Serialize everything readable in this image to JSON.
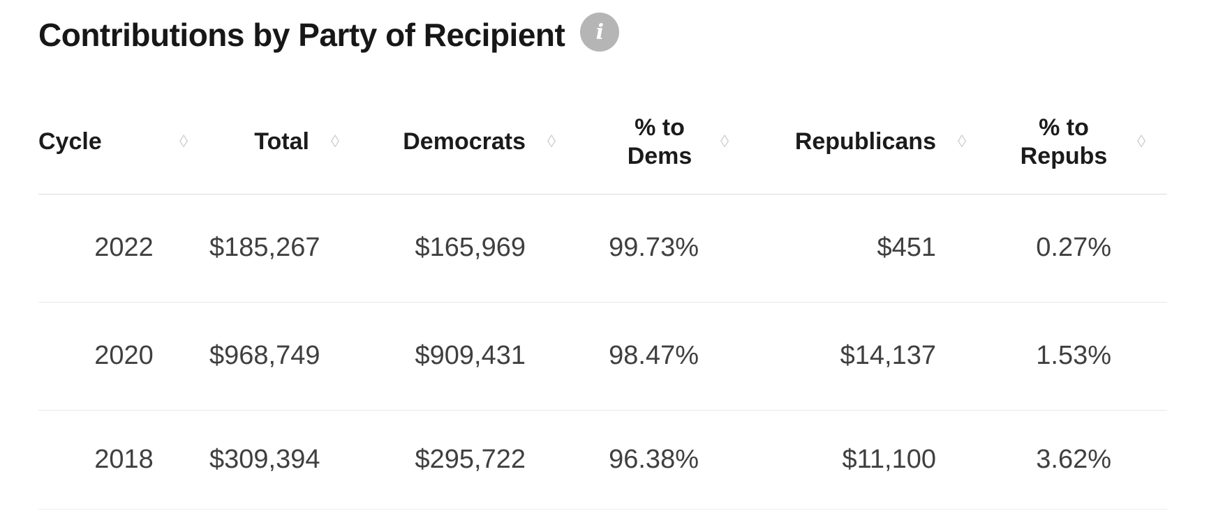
{
  "page": {
    "title": "Contributions by Party of Recipient",
    "info_icon_glyph": "i"
  },
  "table": {
    "sort_icon_glyph": "◊",
    "columns": [
      {
        "id": "cycle",
        "label": "Cycle"
      },
      {
        "id": "total",
        "label": "Total"
      },
      {
        "id": "democrats",
        "label": "Democrats"
      },
      {
        "id": "pct_dems",
        "label": "% to Dems"
      },
      {
        "id": "republicans",
        "label": "Republicans"
      },
      {
        "id": "pct_repubs",
        "label": "% to Repubs"
      }
    ],
    "rows": [
      {
        "cycle": "2022",
        "total": "$185,267",
        "democrats": "$165,969",
        "pct_dems": "99.73%",
        "republicans": "$451",
        "pct_repubs": "0.27%"
      },
      {
        "cycle": "2020",
        "total": "$968,749",
        "democrats": "$909,431",
        "pct_dems": "98.47%",
        "republicans": "$14,137",
        "pct_repubs": "1.53%"
      },
      {
        "cycle": "2018",
        "total": "$309,394",
        "democrats": "$295,722",
        "pct_dems": "96.38%",
        "republicans": "$11,100",
        "pct_repubs": "3.62%"
      }
    ]
  },
  "chart_data": {
    "type": "table",
    "title": "Contributions by Party of Recipient",
    "columns": [
      "Cycle",
      "Total",
      "Democrats",
      "% to Dems",
      "Republicans",
      "% to Repubs"
    ],
    "rows": [
      [
        "2022",
        185267,
        165969,
        99.73,
        451,
        0.27
      ],
      [
        "2020",
        968749,
        909431,
        98.47,
        14137,
        1.53
      ],
      [
        "2018",
        309394,
        295722,
        96.38,
        11100,
        3.62
      ]
    ],
    "units": {
      "Total": "USD",
      "Democrats": "USD",
      "Republicans": "USD",
      "% to Dems": "percent",
      "% to Repubs": "percent"
    }
  },
  "colors": {
    "title_text": "#171717",
    "header_text": "#1b1b1b",
    "cell_text": "#3f3f3f",
    "row_divider": "#e7e7e7",
    "header_divider": "#dcdcdc",
    "bottom_divider": "#eeeeee",
    "sort_icon": "#d2d2d2",
    "info_badge_bg": "#b5b5b5",
    "info_badge_fg": "#ffffff",
    "background": "#ffffff"
  }
}
